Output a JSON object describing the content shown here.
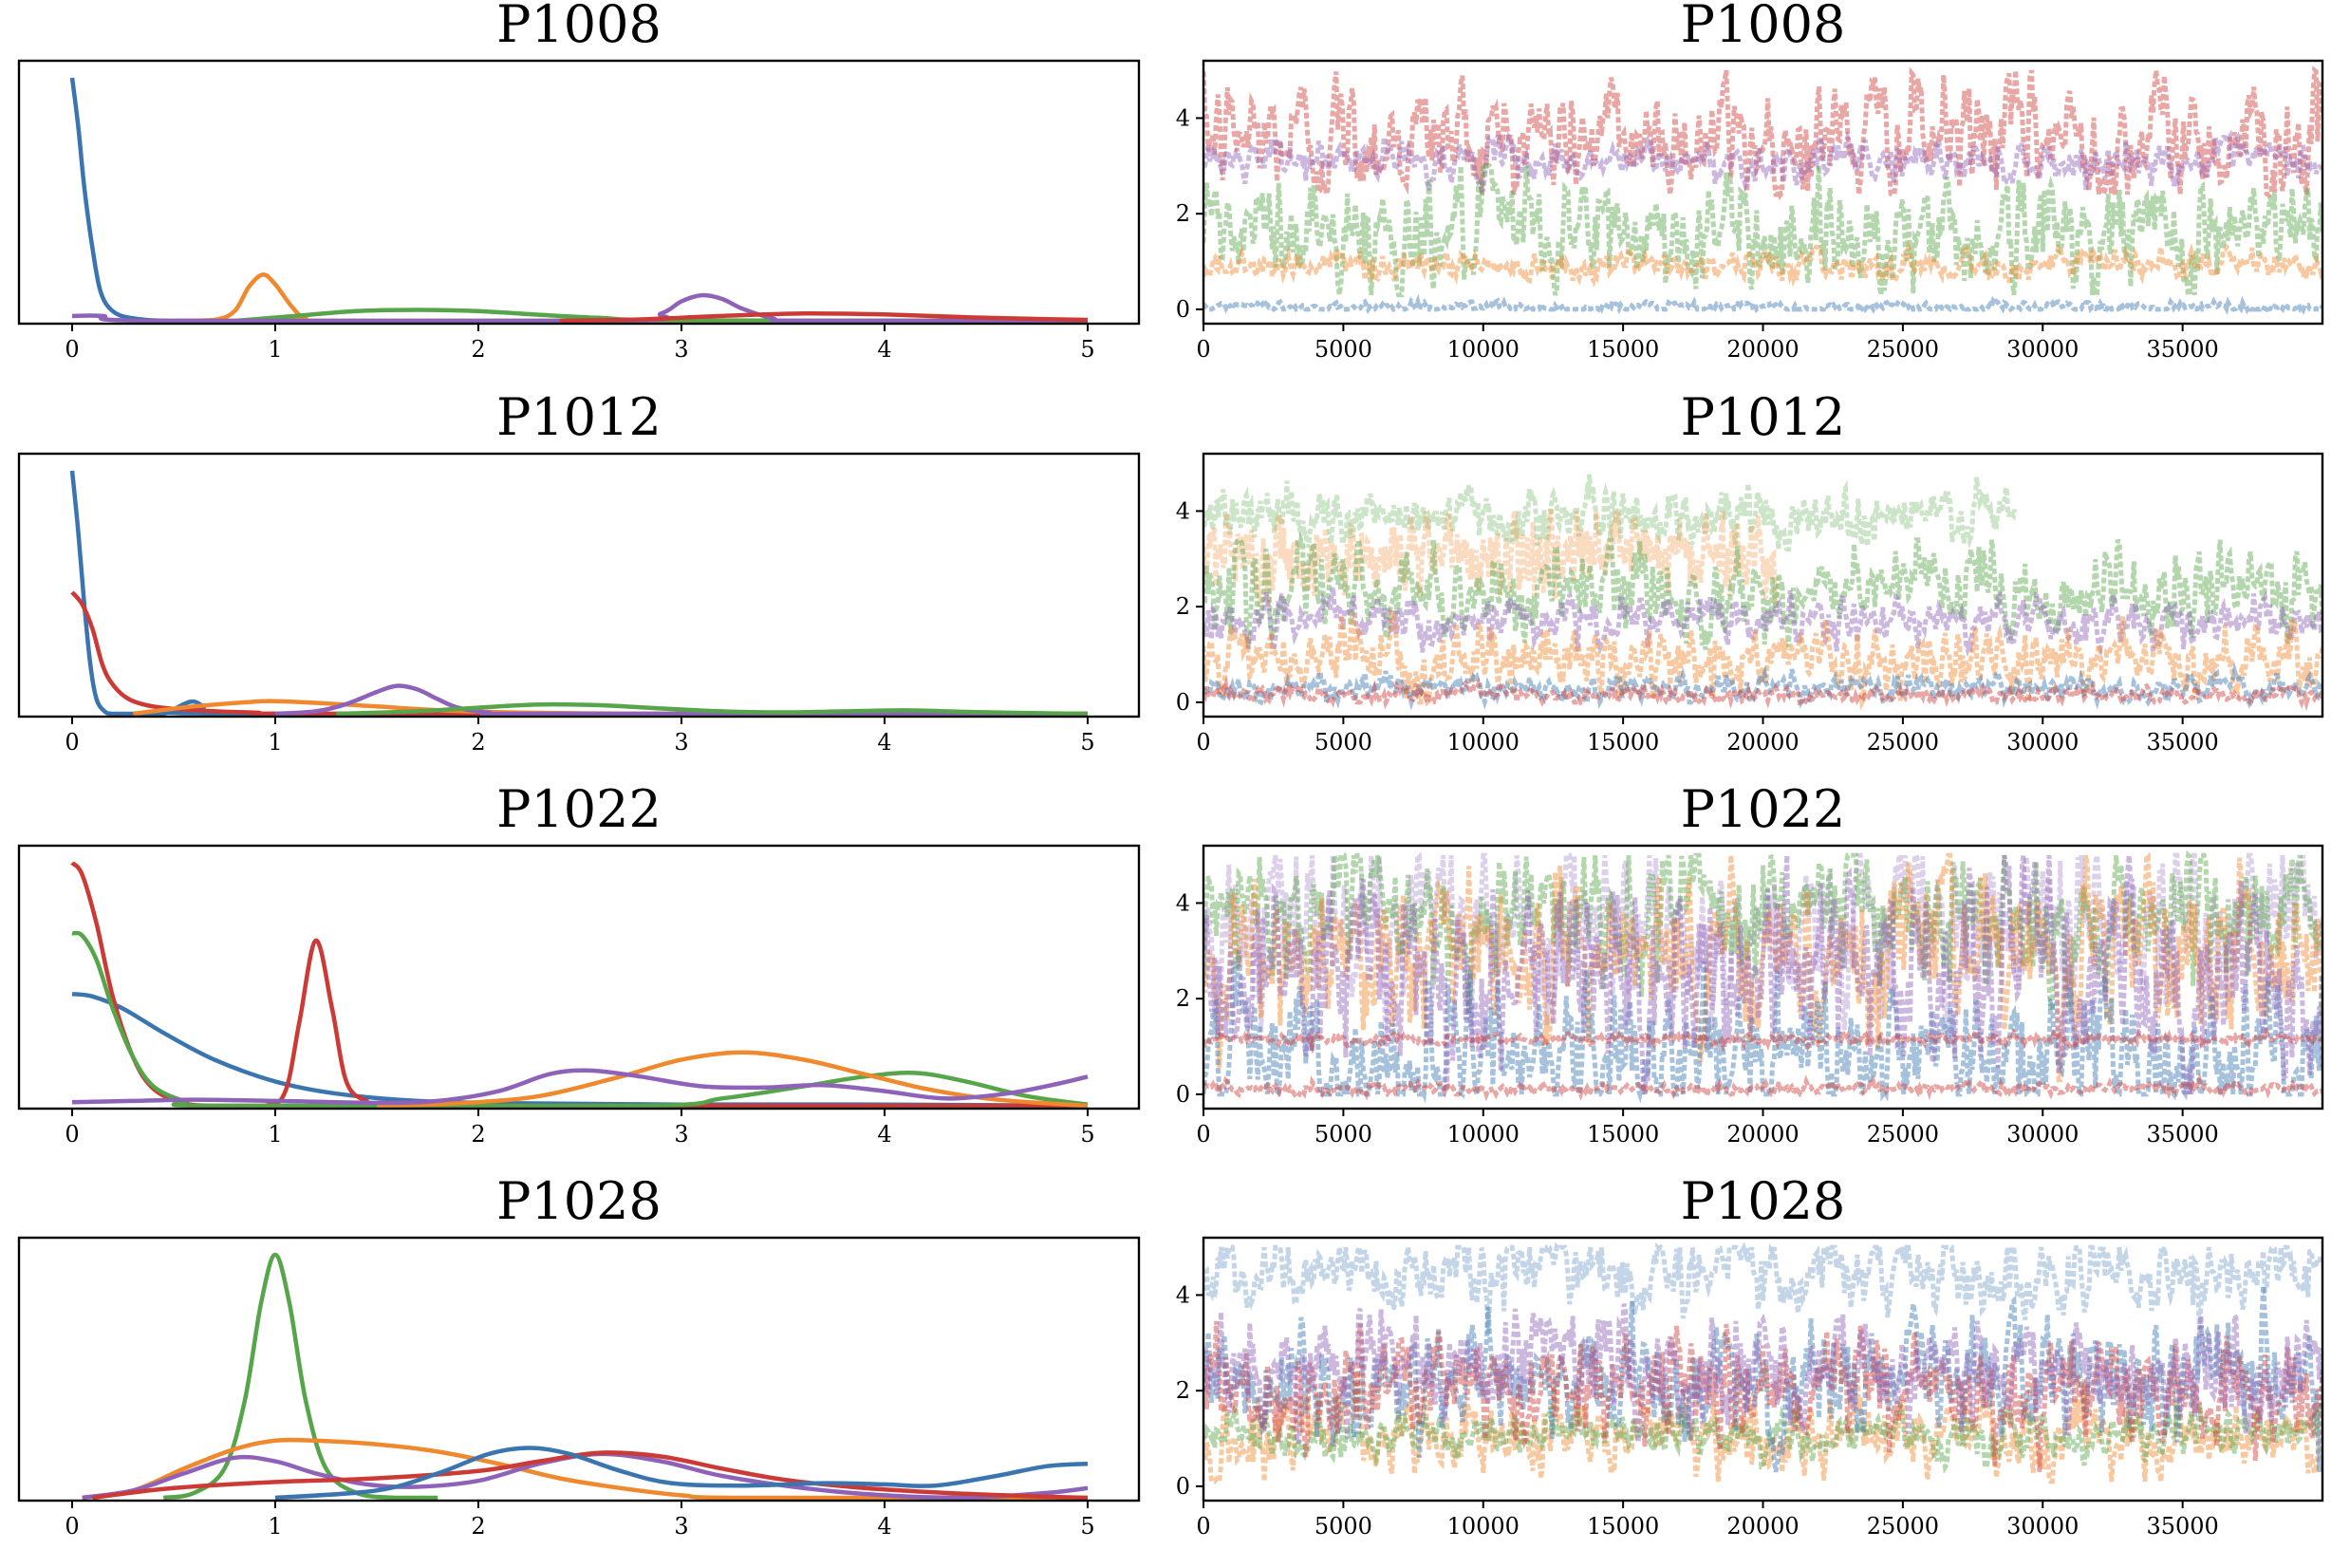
{
  "colors": {
    "blue": "#3a75b0",
    "orange": "#f0882d",
    "green": "#56a54a",
    "red": "#cc3a35",
    "purple": "#8e62b9"
  },
  "chart_data": [
    {
      "type": "line",
      "kind": "density",
      "title": "P1008",
      "xlim": [
        0,
        5
      ],
      "xticks": [
        0,
        1,
        2,
        3,
        4,
        5
      ],
      "yticks": [],
      "series": [
        {
          "name": "blue",
          "color": "blue",
          "x": [
            0,
            0.03,
            0.06,
            0.1,
            0.14,
            0.2,
            0.3,
            0.5,
            1,
            5
          ],
          "y": [
            1.0,
            0.8,
            0.55,
            0.3,
            0.12,
            0.04,
            0.01,
            0.0,
            0.0,
            0.0
          ]
        },
        {
          "name": "orange",
          "color": "orange",
          "x": [
            0.5,
            0.7,
            0.8,
            0.87,
            0.94,
            1.0,
            1.08,
            1.15,
            1.3,
            5
          ],
          "y": [
            0.0,
            0.004,
            0.04,
            0.14,
            0.19,
            0.15,
            0.06,
            0.01,
            0.0,
            0.0
          ]
        },
        {
          "name": "green",
          "color": "green",
          "x": [
            0.8,
            1.1,
            1.4,
            1.7,
            2.0,
            2.3,
            2.6,
            3.0,
            5
          ],
          "y": [
            0.0,
            0.02,
            0.04,
            0.045,
            0.04,
            0.025,
            0.012,
            0.002,
            0.0
          ]
        },
        {
          "name": "purple",
          "color": "purple",
          "x": [
            0,
            0.15,
            0.4,
            2.7,
            2.9,
            3.0,
            3.1,
            3.2,
            3.3,
            3.45,
            3.6,
            5
          ],
          "y": [
            0.02,
            0.02,
            0.0,
            0.0,
            0.03,
            0.08,
            0.105,
            0.09,
            0.05,
            0.01,
            0.0,
            0.0
          ]
        },
        {
          "name": "red",
          "color": "red",
          "x": [
            2.4,
            2.8,
            3.2,
            3.6,
            4.0,
            4.4,
            4.8,
            5.0
          ],
          "y": [
            0.0,
            0.006,
            0.02,
            0.03,
            0.026,
            0.015,
            0.007,
            0.004
          ]
        }
      ]
    },
    {
      "type": "scatter",
      "kind": "trace",
      "title": "P1008",
      "xlim": [
        0,
        39999
      ],
      "ylim": [
        -0.3,
        5.2
      ],
      "xticks": [
        0,
        5000,
        10000,
        15000,
        20000,
        25000,
        30000,
        35000
      ],
      "yticks": [
        0,
        2,
        4
      ],
      "series": [
        {
          "name": "red",
          "color": "red",
          "center": 3.6,
          "spread": 0.9,
          "min": 2.4,
          "max": 5.0
        },
        {
          "name": "purple",
          "color": "purple",
          "center": 3.1,
          "spread": 0.3,
          "min": 2.5,
          "max": 3.6
        },
        {
          "name": "green",
          "color": "green",
          "center": 1.6,
          "spread": 0.9,
          "min": 0.3,
          "max": 3.0
        },
        {
          "name": "orange",
          "color": "orange",
          "center": 0.95,
          "spread": 0.22,
          "min": 0.6,
          "max": 1.3
        },
        {
          "name": "blue",
          "color": "blue",
          "center": 0.05,
          "spread": 0.08,
          "min": 0.0,
          "max": 0.3
        }
      ]
    },
    {
      "type": "line",
      "kind": "density",
      "title": "P1012",
      "xlim": [
        0,
        5
      ],
      "xticks": [
        0,
        1,
        2,
        3,
        4,
        5
      ],
      "yticks": [],
      "series": [
        {
          "name": "blue",
          "color": "blue",
          "x": [
            0,
            0.03,
            0.06,
            0.09,
            0.12,
            0.16,
            0.2,
            0.3,
            0.45,
            0.55,
            0.6,
            0.65,
            0.75,
            5
          ],
          "y": [
            1.0,
            0.75,
            0.45,
            0.2,
            0.06,
            0.01,
            0.0,
            0.0,
            0.0,
            0.04,
            0.05,
            0.03,
            0.0,
            0.0
          ]
        },
        {
          "name": "red",
          "color": "red",
          "x": [
            0,
            0.05,
            0.1,
            0.15,
            0.2,
            0.28,
            0.4,
            0.6,
            0.9,
            1.3,
            5
          ],
          "y": [
            0.5,
            0.45,
            0.35,
            0.2,
            0.12,
            0.06,
            0.03,
            0.015,
            0.005,
            0.0,
            0.0
          ]
        },
        {
          "name": "orange",
          "color": "orange",
          "x": [
            0.3,
            0.6,
            0.9,
            1.0,
            1.2,
            1.5,
            1.8,
            2.2,
            3.0,
            5
          ],
          "y": [
            0.0,
            0.03,
            0.05,
            0.052,
            0.045,
            0.03,
            0.015,
            0.005,
            0.0,
            0.0
          ]
        },
        {
          "name": "purple",
          "color": "purple",
          "x": [
            1.0,
            1.2,
            1.35,
            1.5,
            1.6,
            1.7,
            1.8,
            1.9,
            2.05,
            2.3,
            5
          ],
          "y": [
            0.0,
            0.01,
            0.04,
            0.09,
            0.115,
            0.1,
            0.06,
            0.025,
            0.005,
            0.0,
            0.0
          ]
        },
        {
          "name": "green",
          "color": "green",
          "x": [
            1.3,
            1.7,
            2.0,
            2.3,
            2.6,
            2.9,
            3.2,
            3.5,
            3.8,
            4.1,
            4.4,
            4.8,
            5.0
          ],
          "y": [
            0.0,
            0.01,
            0.025,
            0.038,
            0.035,
            0.022,
            0.01,
            0.006,
            0.01,
            0.014,
            0.008,
            0.002,
            0.0
          ]
        }
      ]
    },
    {
      "type": "scatter",
      "kind": "trace",
      "title": "P1012",
      "xlim": [
        0,
        39999
      ],
      "ylim": [
        -0.3,
        5.2
      ],
      "xticks": [
        0,
        5000,
        10000,
        15000,
        20000,
        25000,
        30000,
        35000
      ],
      "yticks": [
        0,
        2,
        4
      ],
      "series": [
        {
          "name": "green-pale",
          "color": "green",
          "center": 3.9,
          "spread": 0.4,
          "min": 3.2,
          "max": 5.0,
          "tmax": 29000,
          "faint": true
        },
        {
          "name": "orange-pale",
          "color": "orange",
          "center": 3.1,
          "spread": 0.6,
          "min": 2.0,
          "max": 4.0,
          "tmax": 20500,
          "faint": true
        },
        {
          "name": "green",
          "color": "green",
          "center": 2.3,
          "spread": 0.7,
          "min": 1.0,
          "max": 3.4
        },
        {
          "name": "purple",
          "color": "purple",
          "center": 1.7,
          "spread": 0.35,
          "min": 1.0,
          "max": 2.4
        },
        {
          "name": "orange",
          "color": "orange",
          "center": 0.9,
          "spread": 0.5,
          "min": 0.0,
          "max": 2.0
        },
        {
          "name": "blue",
          "color": "blue",
          "center": 0.3,
          "spread": 0.2,
          "min": 0.0,
          "max": 0.8
        },
        {
          "name": "red",
          "color": "red",
          "center": 0.15,
          "spread": 0.12,
          "min": 0.0,
          "max": 0.5
        }
      ]
    },
    {
      "type": "line",
      "kind": "density",
      "title": "P1022",
      "xlim": [
        0,
        5
      ],
      "xticks": [
        0,
        1,
        2,
        3,
        4,
        5
      ],
      "yticks": [],
      "series": [
        {
          "name": "blue",
          "color": "blue",
          "x": [
            0,
            0.1,
            0.25,
            0.45,
            0.7,
            1.0,
            1.3,
            1.7,
            2.2,
            3.0,
            4.0,
            5.0
          ],
          "y": [
            0.46,
            0.45,
            0.4,
            0.3,
            0.19,
            0.1,
            0.05,
            0.02,
            0.01,
            0.005,
            0.005,
            0.0
          ]
        },
        {
          "name": "red",
          "color": "red",
          "x": [
            0,
            0.05,
            0.12,
            0.2,
            0.3,
            0.4,
            0.55,
            0.7,
            0.95,
            1.05,
            1.12,
            1.2,
            1.28,
            1.35,
            1.45,
            1.6,
            5
          ],
          "y": [
            1.0,
            0.95,
            0.75,
            0.45,
            0.2,
            0.07,
            0.01,
            0.0,
            0.0,
            0.06,
            0.35,
            0.68,
            0.4,
            0.1,
            0.02,
            0.0,
            0.0
          ]
        },
        {
          "name": "green",
          "color": "green",
          "x": [
            0,
            0.05,
            0.12,
            0.2,
            0.3,
            0.4,
            0.55,
            0.7,
            2.8,
            3.2,
            3.6,
            3.9,
            4.15,
            4.4,
            4.7,
            5.0
          ],
          "y": [
            0.71,
            0.7,
            0.6,
            0.4,
            0.2,
            0.08,
            0.02,
            0.0,
            0.0,
            0.03,
            0.08,
            0.12,
            0.135,
            0.1,
            0.04,
            0.005
          ]
        },
        {
          "name": "orange",
          "color": "orange",
          "x": [
            1.5,
            1.9,
            2.3,
            2.7,
            3.0,
            3.3,
            3.6,
            3.9,
            4.2,
            4.5,
            4.8,
            5.0
          ],
          "y": [
            0.0,
            0.01,
            0.04,
            0.12,
            0.19,
            0.22,
            0.19,
            0.13,
            0.07,
            0.03,
            0.01,
            0.0
          ]
        },
        {
          "name": "purple",
          "color": "purple",
          "x": [
            0,
            0.3,
            0.6,
            1.0,
            1.5,
            1.8,
            2.1,
            2.35,
            2.55,
            2.8,
            3.1,
            3.4,
            3.7,
            4.0,
            4.3,
            4.6,
            4.85,
            5.0
          ],
          "y": [
            0.015,
            0.02,
            0.025,
            0.02,
            0.012,
            0.02,
            0.06,
            0.13,
            0.145,
            0.12,
            0.08,
            0.075,
            0.085,
            0.06,
            0.03,
            0.05,
            0.09,
            0.12
          ]
        }
      ]
    },
    {
      "type": "scatter",
      "kind": "trace",
      "title": "P1022",
      "xlim": [
        0,
        39999
      ],
      "ylim": [
        -0.3,
        5.2
      ],
      "xticks": [
        0,
        5000,
        10000,
        15000,
        20000,
        25000,
        30000,
        35000
      ],
      "yticks": [
        0,
        2,
        4
      ],
      "series": [
        {
          "name": "purple-pale",
          "color": "purple",
          "center": 3.6,
          "spread": 1.2,
          "min": 0.2,
          "max": 5.0,
          "faint": true
        },
        {
          "name": "green",
          "color": "green",
          "center": 3.8,
          "spread": 1.0,
          "min": 1.5,
          "max": 5.0
        },
        {
          "name": "orange",
          "color": "orange",
          "center": 3.0,
          "spread": 1.2,
          "min": 0.3,
          "max": 5.0
        },
        {
          "name": "blue",
          "color": "blue",
          "center": 0.8,
          "spread": 1.1,
          "min": 0.0,
          "max": 4.5
        },
        {
          "name": "purple",
          "color": "purple",
          "center": 2.5,
          "spread": 1.5,
          "min": 0.0,
          "max": 5.0
        },
        {
          "name": "red",
          "color": "red",
          "center": 1.15,
          "spread": 0.08,
          "min": 0.9,
          "max": 1.4
        },
        {
          "name": "red-low",
          "color": "red",
          "center": 0.12,
          "spread": 0.08,
          "min": 0.0,
          "max": 0.4
        }
      ]
    },
    {
      "type": "line",
      "kind": "density",
      "title": "P1028",
      "xlim": [
        0,
        5
      ],
      "xticks": [
        0,
        1,
        2,
        3,
        4,
        5
      ],
      "yticks": [],
      "series": [
        {
          "name": "green",
          "color": "green",
          "x": [
            0.45,
            0.6,
            0.75,
            0.85,
            0.93,
            1.0,
            1.07,
            1.15,
            1.25,
            1.4,
            1.6,
            1.8
          ],
          "y": [
            0.0,
            0.02,
            0.12,
            0.4,
            0.8,
            1.0,
            0.8,
            0.4,
            0.12,
            0.02,
            0.0,
            0.0
          ]
        },
        {
          "name": "orange",
          "color": "orange",
          "x": [
            0.05,
            0.3,
            0.55,
            0.8,
            1.0,
            1.2,
            1.5,
            1.8,
            2.1,
            2.4,
            2.7,
            3.0,
            3.3,
            5
          ],
          "y": [
            0.0,
            0.03,
            0.12,
            0.2,
            0.235,
            0.235,
            0.22,
            0.19,
            0.14,
            0.08,
            0.04,
            0.01,
            0.0,
            0.0
          ]
        },
        {
          "name": "purple",
          "color": "purple",
          "x": [
            0.05,
            0.3,
            0.55,
            0.8,
            1.0,
            1.2,
            1.45,
            1.7,
            2.0,
            2.3,
            2.6,
            2.9,
            3.2,
            3.6,
            4.0,
            4.4,
            4.8,
            5.0
          ],
          "y": [
            0.0,
            0.03,
            0.1,
            0.165,
            0.15,
            0.1,
            0.055,
            0.045,
            0.07,
            0.14,
            0.18,
            0.15,
            0.09,
            0.04,
            0.01,
            0.0,
            0.02,
            0.04
          ]
        },
        {
          "name": "red",
          "color": "red",
          "x": [
            0.1,
            0.5,
            1.0,
            1.5,
            2.0,
            2.3,
            2.6,
            2.9,
            3.2,
            3.5,
            3.9,
            4.3,
            4.7,
            5.0
          ],
          "y": [
            0.0,
            0.04,
            0.065,
            0.08,
            0.11,
            0.15,
            0.185,
            0.17,
            0.12,
            0.075,
            0.04,
            0.02,
            0.007,
            0.0
          ]
        },
        {
          "name": "blue",
          "color": "blue",
          "x": [
            1.0,
            1.5,
            1.8,
            2.05,
            2.25,
            2.45,
            2.7,
            2.95,
            3.3,
            3.7,
            4.0,
            4.25,
            4.55,
            4.8,
            5.0
          ],
          "y": [
            0.0,
            0.03,
            0.1,
            0.18,
            0.205,
            0.18,
            0.11,
            0.06,
            0.05,
            0.06,
            0.055,
            0.05,
            0.09,
            0.13,
            0.14
          ]
        }
      ]
    },
    {
      "type": "scatter",
      "kind": "trace",
      "title": "P1028",
      "xlim": [
        0,
        39999
      ],
      "ylim": [
        -0.3,
        5.2
      ],
      "xticks": [
        0,
        5000,
        10000,
        15000,
        20000,
        25000,
        30000,
        35000
      ],
      "yticks": [
        0,
        2,
        4
      ],
      "series": [
        {
          "name": "blue-pale",
          "color": "blue",
          "center": 4.5,
          "spread": 0.6,
          "min": 2.5,
          "max": 5.0,
          "faint": true
        },
        {
          "name": "orange",
          "color": "orange",
          "center": 1.1,
          "spread": 0.6,
          "min": 0.1,
          "max": 2.4
        },
        {
          "name": "green",
          "color": "green",
          "center": 1.1,
          "spread": 0.35,
          "min": 0.4,
          "max": 1.8
        },
        {
          "name": "blue",
          "color": "blue",
          "center": 2.2,
          "spread": 0.9,
          "min": 0.3,
          "max": 4.5
        },
        {
          "name": "red",
          "color": "red",
          "center": 2.0,
          "spread": 0.8,
          "min": 0.3,
          "max": 4.5
        },
        {
          "name": "purple",
          "color": "purple",
          "center": 2.5,
          "spread": 0.8,
          "min": 0.3,
          "max": 4.6
        }
      ]
    }
  ]
}
